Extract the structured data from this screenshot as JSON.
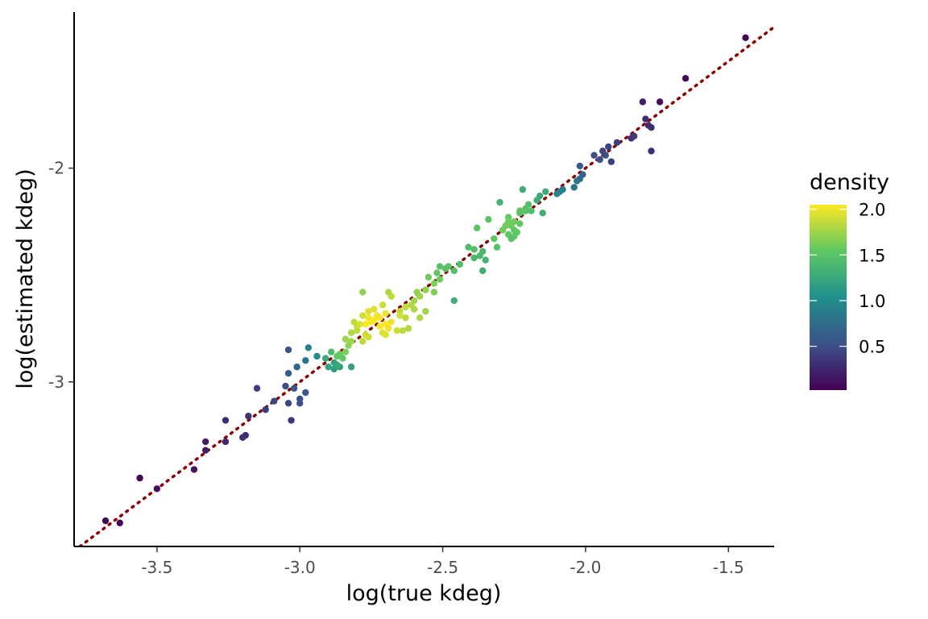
{
  "chart_data": {
    "type": "scatter",
    "title": "",
    "xlabel": "log(true kdeg)",
    "ylabel": "log(estimated kdeg)",
    "xlim": [
      -3.79,
      -1.34
    ],
    "ylim": [
      -3.77,
      -1.27
    ],
    "x_ticks": [
      {
        "value": -3.5,
        "label": "-3.5"
      },
      {
        "value": -3.0,
        "label": "-3.0"
      },
      {
        "value": -2.5,
        "label": "-2.5"
      },
      {
        "value": -2.0,
        "label": "-2.0"
      },
      {
        "value": -1.5,
        "label": "-1.5"
      }
    ],
    "y_ticks": [
      {
        "value": -3,
        "label": "-3"
      },
      {
        "value": -2,
        "label": "-2"
      }
    ],
    "grid": false,
    "reference_line": {
      "type": "identity",
      "slope": 1,
      "intercept": 0,
      "style": "dotted",
      "color": "#8b0000"
    },
    "color_scale": {
      "title": "density",
      "palette": "viridis",
      "range": [
        0.02,
        2.05
      ],
      "stops": [
        "#440154",
        "#3b528b",
        "#21908c",
        "#5dc863",
        "#fde725"
      ],
      "ticks": [
        {
          "value": 0.5,
          "label": "0.5"
        },
        {
          "value": 1.0,
          "label": "1.0"
        },
        {
          "value": 1.5,
          "label": "1.5"
        },
        {
          "value": 2.0,
          "label": "2.0"
        }
      ],
      "legend_position": "right"
    },
    "points": [
      [
        -1.44,
        -1.39,
        0.05
      ],
      [
        -1.65,
        -1.58,
        0.05
      ],
      [
        -1.74,
        -1.69,
        0.1
      ],
      [
        -1.8,
        -1.69,
        0.2
      ],
      [
        -1.79,
        -1.77,
        0.3
      ],
      [
        -1.78,
        -1.8,
        0.3
      ],
      [
        -1.77,
        -1.81,
        0.3
      ],
      [
        -1.83,
        -1.85,
        0.4
      ],
      [
        -1.84,
        -1.86,
        0.35
      ],
      [
        -1.77,
        -1.92,
        0.3
      ],
      [
        -1.89,
        -1.88,
        0.4
      ],
      [
        -1.92,
        -1.9,
        0.45
      ],
      [
        -1.94,
        -1.92,
        0.45
      ],
      [
        -1.93,
        -1.94,
        0.5
      ],
      [
        -1.91,
        -1.97,
        0.4
      ],
      [
        -1.95,
        -1.96,
        0.5
      ],
      [
        -1.97,
        -1.94,
        0.5
      ],
      [
        -2.02,
        -1.99,
        0.6
      ],
      [
        -2.01,
        -2.03,
        0.65
      ],
      [
        -2.02,
        -2.05,
        0.7
      ],
      [
        -2.03,
        -2.06,
        0.8
      ],
      [
        -2.04,
        -2.09,
        0.8
      ],
      [
        -2.08,
        -2.1,
        0.9
      ],
      [
        -2.09,
        -2.11,
        0.9
      ],
      [
        -2.1,
        -2.12,
        0.95
      ],
      [
        -2.14,
        -2.11,
        1.3
      ],
      [
        -2.16,
        -2.13,
        1.25
      ],
      [
        -2.17,
        -2.15,
        1.3
      ],
      [
        -2.22,
        -2.1,
        1.3
      ],
      [
        -2.2,
        -2.17,
        1.45
      ],
      [
        -2.21,
        -2.19,
        1.5
      ],
      [
        -2.23,
        -2.2,
        1.5
      ],
      [
        -2.21,
        -2.2,
        1.5
      ],
      [
        -2.19,
        -2.2,
        1.45
      ],
      [
        -2.23,
        -2.21,
        1.5
      ],
      [
        -2.15,
        -2.21,
        1.3
      ],
      [
        -2.3,
        -2.16,
        1.35
      ],
      [
        -2.27,
        -2.23,
        1.55
      ],
      [
        -2.25,
        -2.25,
        1.6
      ],
      [
        -2.27,
        -2.25,
        1.6
      ],
      [
        -2.26,
        -2.27,
        1.6
      ],
      [
        -2.28,
        -2.27,
        1.6
      ],
      [
        -2.29,
        -2.29,
        1.6
      ],
      [
        -2.25,
        -2.29,
        1.55
      ],
      [
        -2.24,
        -2.3,
        1.55
      ],
      [
        -2.27,
        -2.31,
        1.55
      ],
      [
        -2.25,
        -2.32,
        1.55
      ],
      [
        -2.26,
        -2.33,
        1.5
      ],
      [
        -2.23,
        -2.26,
        1.55
      ],
      [
        -2.34,
        -2.24,
        1.5
      ],
      [
        -2.38,
        -2.28,
        1.5
      ],
      [
        -2.32,
        -2.33,
        1.55
      ],
      [
        -2.31,
        -2.37,
        1.5
      ],
      [
        -2.36,
        -2.39,
        1.4
      ],
      [
        -2.37,
        -2.41,
        1.4
      ],
      [
        -2.39,
        -2.42,
        1.4
      ],
      [
        -2.35,
        -2.43,
        1.35
      ],
      [
        -2.39,
        -2.38,
        1.45
      ],
      [
        -2.41,
        -2.37,
        1.45
      ],
      [
        -2.36,
        -2.48,
        1.3
      ],
      [
        -2.44,
        -2.45,
        1.45
      ],
      [
        -2.46,
        -2.48,
        1.45
      ],
      [
        -2.48,
        -2.46,
        1.5
      ],
      [
        -2.49,
        -2.47,
        1.5
      ],
      [
        -2.51,
        -2.46,
        1.5
      ],
      [
        -2.52,
        -2.49,
        1.55
      ],
      [
        -2.51,
        -2.52,
        1.6
      ],
      [
        -2.55,
        -2.51,
        1.6
      ],
      [
        -2.53,
        -2.54,
        1.65
      ],
      [
        -2.56,
        -2.57,
        1.7
      ],
      [
        -2.59,
        -2.58,
        1.7
      ],
      [
        -2.53,
        -2.58,
        1.65
      ],
      [
        -2.46,
        -2.62,
        1.3
      ],
      [
        -2.58,
        -2.6,
        1.75
      ],
      [
        -2.6,
        -2.62,
        1.75
      ],
      [
        -2.61,
        -2.64,
        1.8
      ],
      [
        -2.6,
        -2.66,
        1.8
      ],
      [
        -2.63,
        -2.65,
        1.85
      ],
      [
        -2.65,
        -2.67,
        1.85
      ],
      [
        -2.56,
        -2.67,
        1.75
      ],
      [
        -2.58,
        -2.7,
        1.8
      ],
      [
        -2.63,
        -2.7,
        1.85
      ],
      [
        -2.65,
        -2.69,
        1.9
      ],
      [
        -2.68,
        -2.6,
        1.85
      ],
      [
        -2.69,
        -2.58,
        1.8
      ],
      [
        -2.71,
        -2.64,
        1.9
      ],
      [
        -2.7,
        -2.68,
        2.0
      ],
      [
        -2.72,
        -2.7,
        2.05
      ],
      [
        -2.73,
        -2.69,
        2.0
      ],
      [
        -2.74,
        -2.71,
        2.05
      ],
      [
        -2.75,
        -2.72,
        2.05
      ],
      [
        -2.76,
        -2.7,
        2.0
      ],
      [
        -2.77,
        -2.73,
        2.05
      ],
      [
        -2.72,
        -2.74,
        2.05
      ],
      [
        -2.7,
        -2.73,
        2.05
      ],
      [
        -2.68,
        -2.72,
        2.0
      ],
      [
        -2.69,
        -2.75,
        2.0
      ],
      [
        -2.71,
        -2.77,
        1.95
      ],
      [
        -2.7,
        -2.78,
        1.95
      ],
      [
        -2.74,
        -2.66,
        1.95
      ],
      [
        -2.76,
        -2.67,
        1.95
      ],
      [
        -2.78,
        -2.69,
        1.9
      ],
      [
        -2.79,
        -2.73,
        1.95
      ],
      [
        -2.8,
        -2.74,
        1.9
      ],
      [
        -2.81,
        -2.72,
        1.85
      ],
      [
        -2.77,
        -2.78,
        1.9
      ],
      [
        -2.76,
        -2.79,
        1.9
      ],
      [
        -2.78,
        -2.81,
        1.85
      ],
      [
        -2.8,
        -2.76,
        1.85
      ],
      [
        -2.82,
        -2.77,
        1.8
      ],
      [
        -2.82,
        -2.81,
        1.75
      ],
      [
        -2.83,
        -2.83,
        1.7
      ],
      [
        -2.84,
        -2.8,
        1.75
      ],
      [
        -2.84,
        -2.86,
        1.65
      ],
      [
        -2.86,
        -2.87,
        1.6
      ],
      [
        -2.87,
        -2.88,
        1.55
      ],
      [
        -2.85,
        -2.89,
        1.55
      ],
      [
        -2.78,
        -2.58,
        1.7
      ],
      [
        -2.66,
        -2.76,
        1.9
      ],
      [
        -2.64,
        -2.76,
        1.85
      ],
      [
        -2.62,
        -2.75,
        1.8
      ],
      [
        -2.89,
        -2.86,
        1.4
      ],
      [
        -2.91,
        -2.89,
        1.25
      ],
      [
        -2.88,
        -2.91,
        1.2
      ],
      [
        -2.9,
        -2.93,
        1.2
      ],
      [
        -2.88,
        -2.94,
        1.15
      ],
      [
        -2.82,
        -2.93,
        1.2
      ],
      [
        -2.86,
        -2.93,
        1.2
      ],
      [
        -2.87,
        -2.92,
        1.25
      ],
      [
        -2.94,
        -2.88,
        1.0
      ],
      [
        -2.97,
        -2.84,
        0.9
      ],
      [
        -2.98,
        -2.9,
        0.8
      ],
      [
        -3.01,
        -2.93,
        0.7
      ],
      [
        -3.04,
        -2.85,
        0.55
      ],
      [
        -3.04,
        -2.96,
        0.6
      ],
      [
        -3.05,
        -3.02,
        0.5
      ],
      [
        -3.02,
        -3.03,
        0.55
      ],
      [
        -3.0,
        -3.08,
        0.5
      ],
      [
        -3.0,
        -3.1,
        0.5
      ],
      [
        -2.98,
        -3.05,
        0.55
      ],
      [
        -3.04,
        -3.1,
        0.45
      ],
      [
        -3.03,
        -3.18,
        0.35
      ],
      [
        -3.09,
        -3.09,
        0.45
      ],
      [
        -3.12,
        -3.13,
        0.4
      ],
      [
        -3.15,
        -3.03,
        0.4
      ],
      [
        -3.18,
        -3.16,
        0.35
      ],
      [
        -3.19,
        -3.25,
        0.3
      ],
      [
        -3.2,
        -3.26,
        0.3
      ],
      [
        -3.26,
        -3.18,
        0.3
      ],
      [
        -3.26,
        -3.28,
        0.25
      ],
      [
        -3.33,
        -3.28,
        0.2
      ],
      [
        -3.33,
        -3.32,
        0.2
      ],
      [
        -3.37,
        -3.41,
        0.15
      ],
      [
        -3.5,
        -3.5,
        0.1
      ],
      [
        -3.56,
        -3.45,
        0.05
      ],
      [
        -3.68,
        -3.65,
        0.05
      ],
      [
        -3.63,
        -3.66,
        0.05
      ]
    ]
  }
}
